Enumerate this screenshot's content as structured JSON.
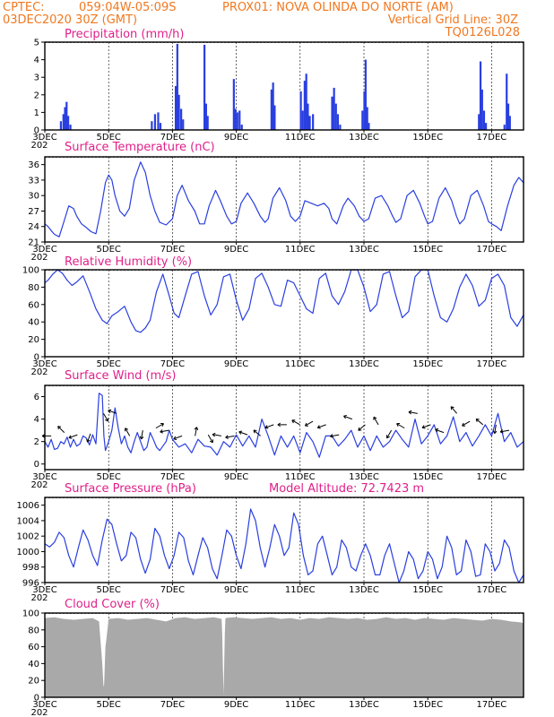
{
  "header": {
    "line1_left": "CPTEC:",
    "line1_coords": "059:04W-05:09S",
    "line1_station": "PROX01: NOVA OLINDA DO NORTE (AM)",
    "line2_left": "03DEC2020 30Z (GMT)",
    "line2_right": "Vertical Grid Line: 30Z",
    "line3_right": "TQ0126L028"
  },
  "colors": {
    "line": "#2a3fe0",
    "cloud": "#a9a9a9",
    "header": "#f07820",
    "title": "#e0208a"
  },
  "x_axis": {
    "days_visible": 15,
    "tick_labels": [
      "3DEC",
      "5DEC",
      "7DEC",
      "9DEC",
      "11DEC",
      "13DEC",
      "15DEC",
      "17DEC"
    ],
    "tick_days": [
      0,
      2,
      4,
      6,
      8,
      10,
      12,
      14
    ],
    "sublabel": "202"
  },
  "chart_data": [
    {
      "id": "precip",
      "type": "bar",
      "title": "Precipitation (mm/h)",
      "ylim": [
        0,
        5
      ],
      "yticks": [
        0,
        1,
        2,
        3,
        4,
        5
      ],
      "bars": [
        [
          0.5,
          0.5
        ],
        [
          0.58,
          0.9
        ],
        [
          0.63,
          1.3
        ],
        [
          0.68,
          1.6
        ],
        [
          0.73,
          0.8
        ],
        [
          0.8,
          0.3
        ],
        [
          3.35,
          0.5
        ],
        [
          3.45,
          0.9
        ],
        [
          3.55,
          1.0
        ],
        [
          3.62,
          0.4
        ],
        [
          4.1,
          2.5
        ],
        [
          4.15,
          4.9
        ],
        [
          4.2,
          2.0
        ],
        [
          4.27,
          1.2
        ],
        [
          4.33,
          0.6
        ],
        [
          5.0,
          4.85
        ],
        [
          5.05,
          1.5
        ],
        [
          5.1,
          0.8
        ],
        [
          5.92,
          2.9
        ],
        [
          5.97,
          1.2
        ],
        [
          6.03,
          1.0
        ],
        [
          6.1,
          1.1
        ],
        [
          6.17,
          0.3
        ],
        [
          7.1,
          2.3
        ],
        [
          7.15,
          2.7
        ],
        [
          7.2,
          1.4
        ],
        [
          8.02,
          2.2
        ],
        [
          8.08,
          1.1
        ],
        [
          8.14,
          2.8
        ],
        [
          8.19,
          3.2
        ],
        [
          8.24,
          1.5
        ],
        [
          8.3,
          0.8
        ],
        [
          8.4,
          0.9
        ],
        [
          9.0,
          1.9
        ],
        [
          9.06,
          2.4
        ],
        [
          9.12,
          1.5
        ],
        [
          9.18,
          0.9
        ],
        [
          9.25,
          0.3
        ],
        [
          9.95,
          1.1
        ],
        [
          10.01,
          2.2
        ],
        [
          10.05,
          4.0
        ],
        [
          10.1,
          1.3
        ],
        [
          10.15,
          0.4
        ],
        [
          13.6,
          0.9
        ],
        [
          13.65,
          3.9
        ],
        [
          13.7,
          2.3
        ],
        [
          13.76,
          1.1
        ],
        [
          13.82,
          0.4
        ],
        [
          14.4,
          0.3
        ],
        [
          14.47,
          3.2
        ],
        [
          14.52,
          1.5
        ],
        [
          14.57,
          0.8
        ]
      ]
    },
    {
      "id": "temp",
      "type": "line",
      "title": "Surface Temperature (nC)",
      "ylim": [
        21,
        37.5
      ],
      "yticks": [
        21,
        24,
        27,
        30,
        33,
        36
      ],
      "x": [
        0,
        0.1,
        0.2,
        0.3,
        0.45,
        0.6,
        0.75,
        0.9,
        1.0,
        1.15,
        1.3,
        1.45,
        1.6,
        1.75,
        1.9,
        2.0,
        2.1,
        2.2,
        2.35,
        2.5,
        2.65,
        2.8,
        3.0,
        3.15,
        3.3,
        3.45,
        3.6,
        3.8,
        4.0,
        4.15,
        4.3,
        4.5,
        4.7,
        4.85,
        5.0,
        5.15,
        5.35,
        5.5,
        5.7,
        5.85,
        6.0,
        6.15,
        6.35,
        6.55,
        6.75,
        6.9,
        7.0,
        7.15,
        7.35,
        7.55,
        7.7,
        7.85,
        8.0,
        8.15,
        8.35,
        8.55,
        8.75,
        8.9,
        9.0,
        9.15,
        9.35,
        9.5,
        9.7,
        9.85,
        10.0,
        10.15,
        10.35,
        10.55,
        10.75,
        10.9,
        11.0,
        11.15,
        11.35,
        11.55,
        11.75,
        11.9,
        12.0,
        12.15,
        12.35,
        12.55,
        12.75,
        12.9,
        13.0,
        13.15,
        13.35,
        13.55,
        13.75,
        13.9,
        14.0,
        14.15,
        14.3,
        14.5,
        14.7,
        14.85,
        15.0
      ],
      "y": [
        24.5,
        24.0,
        23.2,
        22.5,
        22.0,
        25.0,
        28.0,
        27.5,
        26.0,
        24.5,
        23.8,
        23.0,
        22.6,
        27.0,
        32.5,
        34.0,
        33.0,
        30.0,
        27.0,
        26.0,
        27.5,
        33.0,
        36.5,
        34.5,
        30.0,
        27.0,
        24.8,
        24.3,
        25.5,
        30.0,
        32.0,
        29.0,
        27.0,
        24.5,
        24.5,
        28.0,
        31.0,
        29.0,
        26.0,
        24.5,
        25.0,
        28.5,
        30.5,
        28.5,
        26.0,
        24.8,
        25.5,
        29.5,
        31.5,
        29.0,
        26.0,
        25.0,
        26.0,
        29.0,
        28.5,
        28.0,
        28.5,
        27.5,
        25.5,
        24.5,
        28.0,
        29.5,
        28.0,
        26.0,
        25.0,
        25.5,
        29.5,
        30.0,
        28.0,
        26.0,
        24.8,
        25.5,
        30.0,
        31.0,
        28.5,
        26.0,
        24.5,
        25.0,
        29.5,
        31.5,
        29.0,
        26.0,
        24.5,
        25.5,
        30.0,
        31.0,
        28.0,
        25.0,
        24.5,
        24.0,
        23.2,
        28.0,
        32.0,
        33.5,
        32.5
      ]
    },
    {
      "id": "rh",
      "type": "line",
      "title": "Relative Humidity (%)",
      "ylim": [
        0,
        100
      ],
      "yticks": [
        0,
        20,
        40,
        60,
        80,
        100
      ],
      "x": [
        0,
        0.1,
        0.25,
        0.4,
        0.55,
        0.7,
        0.85,
        1.0,
        1.2,
        1.4,
        1.6,
        1.8,
        1.95,
        2.1,
        2.3,
        2.5,
        2.7,
        2.85,
        3.0,
        3.15,
        3.3,
        3.5,
        3.7,
        3.9,
        4.05,
        4.2,
        4.4,
        4.6,
        4.8,
        5.0,
        5.2,
        5.4,
        5.6,
        5.8,
        6.0,
        6.2,
        6.4,
        6.6,
        6.8,
        7.0,
        7.2,
        7.4,
        7.6,
        7.8,
        8.0,
        8.2,
        8.4,
        8.6,
        8.8,
        9.0,
        9.2,
        9.4,
        9.6,
        9.8,
        10.0,
        10.2,
        10.4,
        10.6,
        10.8,
        11.0,
        11.2,
        11.4,
        11.6,
        11.8,
        12.0,
        12.2,
        12.4,
        12.6,
        12.8,
        13.0,
        13.2,
        13.4,
        13.6,
        13.8,
        14.0,
        14.2,
        14.4,
        14.6,
        14.8,
        15.0
      ],
      "y": [
        85,
        88,
        95,
        100,
        96,
        88,
        82,
        86,
        93,
        75,
        55,
        42,
        38,
        47,
        52,
        58,
        40,
        30,
        28,
        33,
        42,
        75,
        95,
        70,
        50,
        45,
        70,
        95,
        98,
        70,
        48,
        60,
        92,
        95,
        65,
        42,
        55,
        90,
        96,
        80,
        60,
        58,
        88,
        85,
        70,
        55,
        50,
        90,
        96,
        70,
        60,
        75,
        100,
        100,
        80,
        52,
        60,
        95,
        98,
        70,
        45,
        52,
        92,
        100,
        100,
        70,
        45,
        40,
        55,
        80,
        95,
        82,
        58,
        65,
        90,
        95,
        82,
        45,
        35,
        48
      ]
    },
    {
      "id": "wind",
      "type": "line",
      "title": "Surface Wind (m/s)",
      "ylim": [
        -0.5,
        7
      ],
      "yticks": [
        0,
        2,
        4,
        6
      ],
      "x": [
        0,
        0.1,
        0.2,
        0.3,
        0.4,
        0.5,
        0.6,
        0.7,
        0.8,
        0.9,
        1.0,
        1.1,
        1.2,
        1.3,
        1.4,
        1.5,
        1.6,
        1.7,
        1.8,
        1.85,
        1.9,
        2.0,
        2.1,
        2.2,
        2.3,
        2.4,
        2.5,
        2.6,
        2.7,
        2.8,
        2.9,
        3.0,
        3.1,
        3.2,
        3.3,
        3.4,
        3.5,
        3.6,
        3.7,
        3.8,
        3.9,
        4.0,
        4.2,
        4.4,
        4.6,
        4.8,
        5.0,
        5.2,
        5.4,
        5.6,
        5.8,
        6.0,
        6.2,
        6.4,
        6.6,
        6.8,
        7.0,
        7.2,
        7.4,
        7.6,
        7.8,
        8.0,
        8.2,
        8.4,
        8.6,
        8.8,
        9.0,
        9.2,
        9.4,
        9.6,
        9.8,
        10.0,
        10.2,
        10.4,
        10.6,
        10.8,
        11.0,
        11.2,
        11.4,
        11.6,
        11.8,
        12.0,
        12.2,
        12.4,
        12.6,
        12.8,
        13.0,
        13.2,
        13.4,
        13.6,
        13.8,
        14.0,
        14.2,
        14.4,
        14.6,
        14.8,
        15.0
      ],
      "y": [
        2.0,
        1.5,
        2.2,
        1.3,
        1.4,
        2.0,
        1.8,
        2.4,
        1.5,
        2.2,
        1.6,
        1.8,
        2.5,
        2.3,
        1.7,
        2.6,
        1.8,
        6.3,
        6.1,
        2.5,
        1.2,
        2.0,
        3.0,
        5.0,
        3.2,
        1.8,
        2.5,
        1.5,
        1.0,
        2.0,
        2.8,
        2.0,
        1.2,
        1.5,
        2.8,
        2.2,
        1.5,
        1.2,
        1.6,
        2.0,
        3.0,
        2.2,
        1.5,
        1.8,
        1.0,
        2.2,
        1.6,
        1.5,
        0.8,
        2.0,
        1.5,
        2.6,
        1.6,
        2.5,
        1.5,
        4.0,
        2.5,
        0.8,
        2.5,
        1.5,
        2.5,
        1.0,
        2.8,
        2.0,
        0.6,
        2.5,
        2.5,
        1.6,
        2.2,
        3.0,
        1.5,
        2.5,
        1.2,
        2.5,
        1.5,
        2.0,
        3.0,
        2.2,
        1.5,
        4.0,
        1.8,
        2.5,
        3.5,
        1.8,
        2.5,
        4.2,
        2.0,
        2.8,
        1.6,
        2.5,
        3.5,
        2.5,
        4.5,
        2.0,
        2.8,
        1.5,
        2.0
      ]
    },
    {
      "id": "pres",
      "type": "line",
      "title": "Surface Pressure (hPa)",
      "annotation": "Model Altitude: 72.7423 m",
      "ylim": [
        996,
        1007
      ],
      "yticks": [
        996,
        998,
        1000,
        1002,
        1004,
        1006
      ],
      "x": [
        0,
        0.15,
        0.3,
        0.45,
        0.6,
        0.75,
        0.9,
        1.05,
        1.2,
        1.35,
        1.5,
        1.65,
        1.8,
        1.95,
        2.1,
        2.25,
        2.4,
        2.55,
        2.7,
        2.85,
        3.0,
        3.15,
        3.3,
        3.45,
        3.6,
        3.75,
        3.9,
        4.05,
        4.2,
        4.35,
        4.5,
        4.65,
        4.8,
        4.95,
        5.1,
        5.25,
        5.4,
        5.55,
        5.7,
        5.85,
        6.0,
        6.15,
        6.3,
        6.45,
        6.6,
        6.75,
        6.9,
        7.05,
        7.2,
        7.35,
        7.5,
        7.65,
        7.8,
        7.95,
        8.1,
        8.25,
        8.4,
        8.55,
        8.7,
        8.85,
        9.0,
        9.15,
        9.3,
        9.45,
        9.6,
        9.75,
        9.9,
        10.05,
        10.2,
        10.35,
        10.5,
        10.65,
        10.8,
        10.95,
        11.1,
        11.25,
        11.4,
        11.55,
        11.7,
        11.85,
        12.0,
        12.15,
        12.3,
        12.45,
        12.6,
        12.75,
        12.9,
        13.05,
        13.2,
        13.35,
        13.5,
        13.65,
        13.8,
        13.95,
        14.1,
        14.25,
        14.4,
        14.55,
        14.7,
        14.85,
        15.0
      ],
      "y": [
        1001.0,
        1000.6,
        1001.2,
        1002.5,
        1001.8,
        999.5,
        998.0,
        1000.5,
        1002.8,
        1001.5,
        999.5,
        998.2,
        1001.5,
        1004.2,
        1003.5,
        1001.0,
        998.8,
        999.5,
        1002.5,
        1001.8,
        999.0,
        997.2,
        999.0,
        1003.0,
        1002.0,
        999.5,
        997.8,
        999.5,
        1002.5,
        1001.8,
        998.8,
        997.0,
        999.5,
        1001.8,
        1000.5,
        997.8,
        996.5,
        999.5,
        1002.8,
        1002.0,
        999.5,
        997.8,
        1001.0,
        1005.5,
        1004.0,
        1000.5,
        998.0,
        1000.5,
        1003.5,
        1002.0,
        999.5,
        1000.5,
        1005.0,
        1003.5,
        999.5,
        997.0,
        997.5,
        1001.0,
        1002.0,
        999.5,
        997.0,
        998.0,
        1001.5,
        1000.5,
        998.0,
        997.5,
        999.5,
        1001.0,
        999.5,
        997.0,
        997.0,
        999.5,
        1001.0,
        998.5,
        996.0,
        997.5,
        1000.0,
        999.0,
        996.5,
        997.5,
        1000.0,
        999.0,
        996.5,
        998.0,
        1002.0,
        1000.5,
        997.0,
        997.5,
        1001.5,
        1000.0,
        996.8,
        997.0,
        1001.0,
        1000.0,
        997.5,
        998.5,
        1001.5,
        1000.5,
        997.5,
        995.8,
        997.0
      ]
    },
    {
      "id": "cloud",
      "type": "area",
      "title": "Cloud Cover (%)",
      "ylim": [
        0,
        100
      ],
      "yticks": [
        0,
        20,
        40,
        60,
        80,
        100
      ],
      "x": [
        0,
        0.3,
        0.6,
        0.9,
        1.2,
        1.5,
        1.7,
        1.8,
        1.85,
        1.9,
        2.0,
        2.3,
        2.6,
        2.9,
        3.2,
        3.5,
        3.8,
        4.1,
        4.4,
        4.7,
        5.0,
        5.3,
        5.55,
        5.6,
        5.65,
        5.9,
        6.2,
        6.5,
        6.8,
        7.1,
        7.4,
        7.7,
        8.0,
        8.3,
        8.6,
        8.9,
        9.2,
        9.5,
        9.8,
        10.1,
        10.4,
        10.7,
        11.0,
        11.3,
        11.6,
        11.9,
        12.2,
        12.5,
        12.8,
        13.1,
        13.4,
        13.7,
        14.0,
        14.3,
        14.6,
        14.9,
        15.0
      ],
      "y": [
        94,
        95,
        93,
        92,
        93,
        94,
        90,
        40,
        5,
        60,
        93,
        94,
        92,
        93,
        94,
        92,
        90,
        94,
        95,
        93,
        94,
        95,
        93,
        3,
        94,
        95,
        94,
        93,
        94,
        95,
        93,
        94,
        92,
        94,
        93,
        95,
        94,
        93,
        94,
        92,
        93,
        95,
        93,
        94,
        92,
        94,
        93,
        92,
        94,
        93,
        92,
        91,
        93,
        92,
        90,
        89,
        88
      ]
    }
  ]
}
